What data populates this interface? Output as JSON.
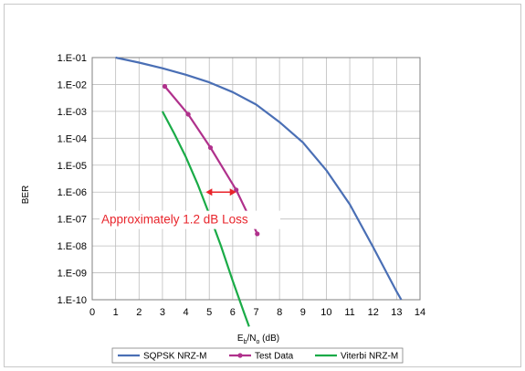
{
  "chart_data": {
    "type": "line",
    "xlabel": "Eb/No (dB)",
    "ylabel": "BER",
    "xlim": [
      0,
      14
    ],
    "ylim_exp": [
      -10,
      -1
    ],
    "log_y": true,
    "grid": true,
    "legend_position": "bottom-center",
    "x_ticks": [
      "0",
      "1",
      "2",
      "3",
      "4",
      "5",
      "6",
      "7",
      "8",
      "9",
      "10",
      "11",
      "12",
      "13",
      "14"
    ],
    "y_ticks": [
      "1.E-10",
      "1.E-09",
      "1.E-08",
      "1.E-07",
      "1.E-06",
      "1.E-05",
      "1.E-04",
      "1.E-03",
      "1.E-02",
      "1.E-01"
    ],
    "series": [
      {
        "name": "SQPSK NRZ-M",
        "color": "#4a6fb5",
        "marker": "none",
        "x": [
          1.0,
          2.0,
          3.0,
          4.0,
          5.0,
          6.0,
          7.0,
          8.0,
          9.0,
          10.0,
          11.0,
          12.0,
          13.0,
          13.2
        ],
        "y": [
          0.1,
          0.065,
          0.04,
          0.023,
          0.012,
          0.0052,
          0.0018,
          0.0004,
          7e-05,
          6.5e-06,
          3.5e-07,
          9e-09,
          2e-10,
          1e-10
        ]
      },
      {
        "name": "Test Data",
        "color": "#b0318c",
        "marker": "circle",
        "x": [
          3.1,
          4.1,
          5.05,
          6.15,
          7.05
        ],
        "y": [
          0.0085,
          0.00078,
          4.5e-05,
          1.2e-06,
          2.8e-08
        ]
      },
      {
        "name": "Viterbi NRZ-M",
        "color": "#1aab47",
        "marker": "none",
        "x": [
          3.0,
          3.5,
          4.0,
          4.5,
          5.0,
          5.5,
          6.0,
          6.5,
          6.7
        ],
        "y": [
          0.001,
          0.00015,
          2e-05,
          2e-06,
          1.5e-07,
          1e-08,
          5e-10,
          3e-11,
          1e-11
        ]
      }
    ],
    "annotation": {
      "text": "Approximately 1.2 dB Loss",
      "arrow_x": [
        4.85,
        6.15
      ],
      "arrow_y": 1e-06,
      "color": "#e8242b"
    }
  }
}
